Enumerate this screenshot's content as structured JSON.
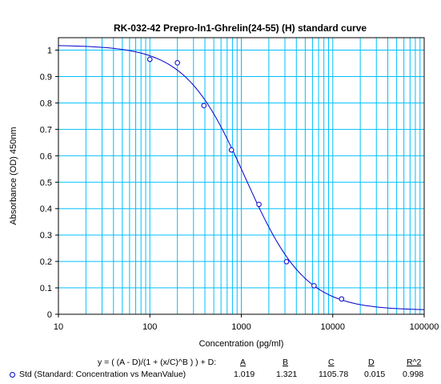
{
  "chart_data": {
    "type": "scatter",
    "title": "RK-032-42  Prepro-ln1-Ghrelin(24-55) (H) standard curve",
    "xlabel": "Concentration (pg/ml)",
    "ylabel": "Absorbance (OD) 450nm",
    "x_scale": "log",
    "xlim": [
      10,
      100000
    ],
    "ylim": [
      0,
      1.05
    ],
    "grid": true,
    "x_ticks": [
      "10",
      "100",
      "1000",
      "10000",
      "100000"
    ],
    "y_ticks": [
      "0",
      "0.1",
      "0.2",
      "0.3",
      "0.4",
      "0.5",
      "0.6",
      "0.7",
      "0.8",
      "0.9",
      "1"
    ],
    "series": [
      {
        "name": "Std (Standard: Concentration vs MeanValue)",
        "x": [
          100,
          200,
          390,
          780,
          1560,
          3125,
          6250,
          12500
        ],
        "y": [
          0.965,
          0.952,
          0.79,
          0.622,
          0.416,
          0.199,
          0.108,
          0.058
        ]
      }
    ],
    "fit": {
      "equation": "y = ( (A - D)/(1 + (x/C)^B ) ) + D:",
      "A": 1.019,
      "B": 1.321,
      "C": 1105.78,
      "D": 0.015
    }
  },
  "legend": {
    "equation": "y = ( (A - D)/(1 + (x/C)^B ) ) + D:",
    "headers": [
      "A",
      "B",
      "C",
      "D",
      "R^2"
    ],
    "series_label": "Std (Standard: Concentration vs MeanValue)",
    "values": [
      "1.019",
      "1.321",
      "1105.78",
      "0.015",
      "0.998"
    ]
  },
  "colors": {
    "grid": "#00bfff",
    "curve": "#0000cc",
    "marker": "#0000cc",
    "axis": "#000000"
  }
}
